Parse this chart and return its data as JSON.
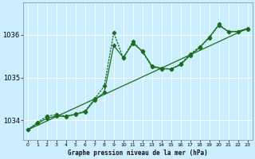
{
  "title": "Graphe pression niveau de la mer (hPa)",
  "bg_color": "#cceeff",
  "grid_color": "#ffffff",
  "line_color": "#1a6e1a",
  "x_ticks": [
    0,
    1,
    2,
    3,
    4,
    5,
    6,
    7,
    8,
    9,
    10,
    11,
    12,
    13,
    14,
    15,
    16,
    17,
    18,
    19,
    20,
    21,
    22,
    23
  ],
  "y_ticks": [
    1034,
    1035,
    1036
  ],
  "ylim": [
    1033.55,
    1036.75
  ],
  "xlim": [
    -0.5,
    23.5
  ],
  "series1": [
    1033.78,
    1033.93,
    1034.05,
    1034.1,
    1034.09,
    1034.14,
    1034.2,
    1034.48,
    1034.65,
    1035.75,
    1035.47,
    1035.8,
    1035.62,
    1035.27,
    1035.22,
    1035.2,
    1035.3,
    1035.52,
    1035.7,
    1035.95,
    1036.22,
    1036.08,
    1036.08,
    1036.15
  ],
  "series2": [
    1033.78,
    1033.95,
    1034.1,
    1034.13,
    1034.1,
    1034.15,
    1034.22,
    1034.5,
    1034.8,
    1036.05,
    1035.45,
    1035.85,
    1035.6,
    1035.25,
    1035.2,
    1035.2,
    1035.32,
    1035.55,
    1035.72,
    1035.92,
    1036.25,
    1036.07,
    1036.07,
    1036.13
  ],
  "series3_x": [
    0,
    23
  ],
  "series3_y": [
    1033.78,
    1036.15
  ],
  "figwidth": 3.2,
  "figheight": 2.0,
  "dpi": 100
}
